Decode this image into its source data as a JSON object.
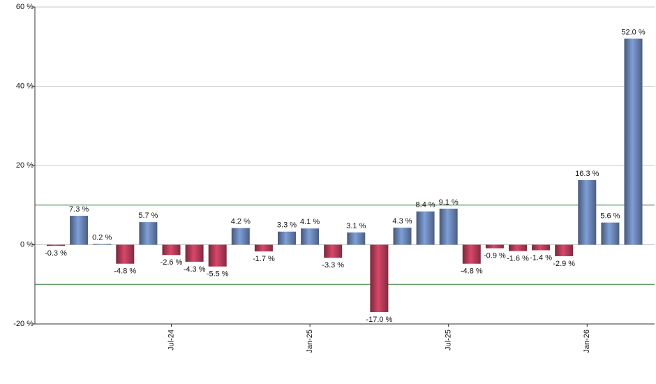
{
  "chart_data": {
    "type": "bar",
    "categories": [
      null,
      null,
      null,
      null,
      null,
      "Jul-24",
      null,
      null,
      null,
      null,
      null,
      "Jan-25",
      null,
      null,
      null,
      null,
      null,
      "Jul-25",
      null,
      null,
      null,
      null,
      null,
      "Jan-26",
      null,
      null
    ],
    "values": [
      -0.3,
      7.3,
      0.2,
      -4.8,
      5.7,
      -2.6,
      -4.3,
      -5.5,
      4.2,
      -1.7,
      3.3,
      4.1,
      -3.3,
      3.1,
      -17.0,
      4.3,
      8.4,
      9.1,
      -4.8,
      -0.9,
      -1.6,
      -1.4,
      -2.9,
      16.3,
      5.6,
      52.0
    ],
    "value_labels": [
      "-0.3 %",
      "7.3 %",
      "0.2 %",
      "-4.8 %",
      "5.7 %",
      "-2.6 %",
      "-4.3 %",
      "-5.5 %",
      "4.2 %",
      "-1.7 %",
      "3.3 %",
      "4.1 %",
      "-3.3 %",
      "3.1 %",
      "-17.0 %",
      "4.3 %",
      "8.4 %",
      "9.1 %",
      "-4.8 %",
      "-0.9 %",
      "-1.6 %",
      "-1.4 %",
      "-2.9 %",
      "16.3 %",
      "5.6 %",
      "52.0 %"
    ],
    "positive_color": "#7f9fd8",
    "negative_color": "#d9476a",
    "ylim": [
      -20,
      60
    ],
    "yticks": [
      {
        "value": -20,
        "label": "-20 %"
      },
      {
        "value": 0,
        "label": "0 %"
      },
      {
        "value": 20,
        "label": "20 %"
      },
      {
        "value": 40,
        "label": "40 %"
      },
      {
        "value": 60,
        "label": "60 %"
      }
    ],
    "grid": true,
    "reference_lines": [
      10,
      -10
    ],
    "reference_color": "#2e7d32"
  }
}
